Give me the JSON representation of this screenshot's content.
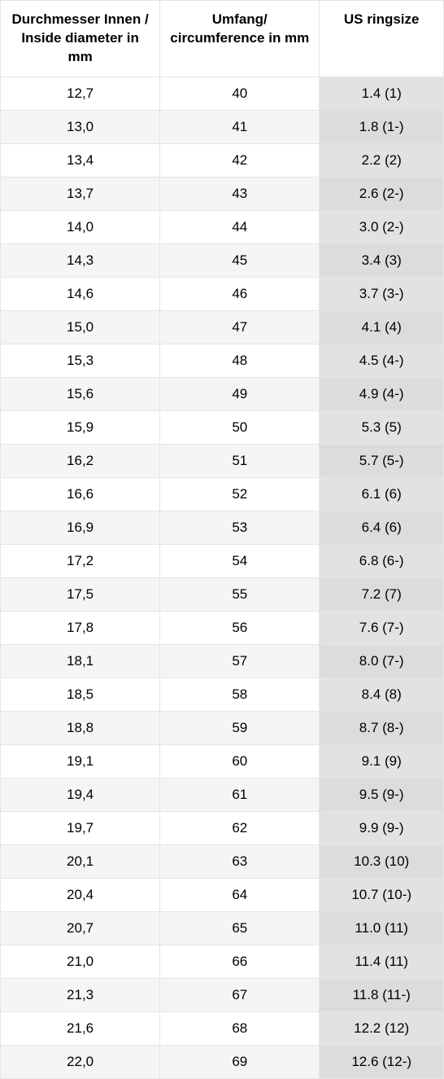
{
  "table": {
    "type": "table",
    "columns": [
      "Durchmesser Innen / Inside diameter in mm",
      "Umfang/ circumference in mm",
      "US ringsize"
    ],
    "column_widths_pct": [
      36,
      36,
      28
    ],
    "header_background": "#ffffff",
    "row_alt_background": "#f5f5f5",
    "row_background": "#ffffff",
    "col3_background": "#e2e2e2",
    "col3_alt_background": "#dcdcdc",
    "border_color": "#e5e5e5",
    "text_color": "#000000",
    "font_size_pt": 13,
    "header_font_weight": 700,
    "rows": [
      [
        "12,7",
        "40",
        "1.4 (1)"
      ],
      [
        "13,0",
        "41",
        "1.8 (1-)"
      ],
      [
        "13,4",
        "42",
        "2.2 (2)"
      ],
      [
        "13,7",
        "43",
        "2.6 (2-)"
      ],
      [
        "14,0",
        "44",
        "3.0 (2-)"
      ],
      [
        "14,3",
        "45",
        "3.4 (3)"
      ],
      [
        "14,6",
        "46",
        "3.7 (3-)"
      ],
      [
        "15,0",
        "47",
        "4.1 (4)"
      ],
      [
        "15,3",
        "48",
        "4.5 (4-)"
      ],
      [
        "15,6",
        "49",
        "4.9 (4-)"
      ],
      [
        "15,9",
        "50",
        "5.3 (5)"
      ],
      [
        "16,2",
        "51",
        "5.7 (5-)"
      ],
      [
        "16,6",
        "52",
        "6.1 (6)"
      ],
      [
        "16,9",
        "53",
        "6.4 (6)"
      ],
      [
        "17,2",
        "54",
        "6.8 (6-)"
      ],
      [
        "17,5",
        "55",
        "7.2 (7)"
      ],
      [
        "17,8",
        "56",
        "7.6 (7-)"
      ],
      [
        "18,1",
        "57",
        "8.0 (7-)"
      ],
      [
        "18,5",
        "58",
        "8.4 (8)"
      ],
      [
        "18,8",
        "59",
        "8.7 (8-)"
      ],
      [
        "19,1",
        "60",
        "9.1 (9)"
      ],
      [
        "19,4",
        "61",
        "9.5 (9-)"
      ],
      [
        "19,7",
        "62",
        "9.9 (9-)"
      ],
      [
        "20,1",
        "63",
        "10.3 (10)"
      ],
      [
        "20,4",
        "64",
        "10.7 (10-)"
      ],
      [
        "20,7",
        "65",
        "11.0 (11)"
      ],
      [
        "21,0",
        "66",
        "11.4 (11)"
      ],
      [
        "21,3",
        "67",
        "11.8 (11-)"
      ],
      [
        "21,6",
        "68",
        "12.2 (12)"
      ],
      [
        "22,0",
        "69",
        "12.6 (12-)"
      ]
    ]
  }
}
